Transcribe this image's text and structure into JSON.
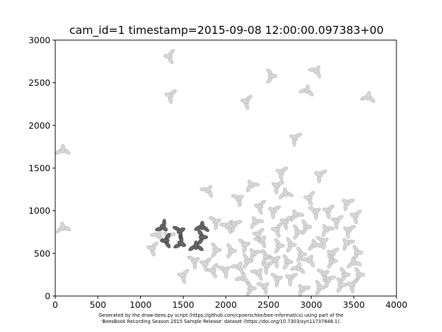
{
  "figure": {
    "title": "cam_id=1 timestamp=2015-09-08 12:00:00.097383+00",
    "footer_line1": "Generated by the draw-bees.py script (https://github.com/cpoerschke/bee-informatics) using part of the",
    "footer_line2": "'BeesBook Recording Season 2015 Sample Release' dataset (https://doi.org/10.7303/syn11737848.1)."
  },
  "chart_data": {
    "type": "scatter",
    "title": "cam_id=1 timestamp=2015-09-08 12:00:00.097383+00",
    "xlabel": "",
    "ylabel": "",
    "xlim": [
      0,
      4000
    ],
    "ylim": [
      0,
      3000
    ],
    "xticks": [
      "0",
      "500",
      "1000",
      "1500",
      "2000",
      "2500",
      "3000",
      "3500",
      "4000"
    ],
    "yticks": [
      "0",
      "500",
      "1000",
      "1500",
      "2000",
      "2500",
      "3000"
    ],
    "grid": false,
    "legend": "none",
    "colors": {
      "highlighted": "#555555",
      "background": "#cfcfcf"
    },
    "marker": "bee (body ellipse + two wing ellipses)",
    "series": [
      {
        "values": [
          {
            "x": 1650,
            "y": 580,
            "angle": 90
          },
          {
            "x": 1460,
            "y": 760,
            "angle": 30
          },
          {
            "x": 1260,
            "y": 810,
            "angle": -40
          },
          {
            "x": 1720,
            "y": 810,
            "angle": 85
          },
          {
            "x": 1720,
            "y": 690,
            "angle": 0
          },
          {
            "x": 1470,
            "y": 620,
            "angle": -30
          },
          {
            "x": 1300,
            "y": 650,
            "angle": 180
          }
        ]
      },
      {
        "values": [
          {
            "x": 2530,
            "y": 2580,
            "angle": 0
          },
          {
            "x": 2810,
            "y": 1850,
            "angle": 150
          },
          {
            "x": 2650,
            "y": 1450,
            "angle": 155
          },
          {
            "x": 1340,
            "y": 2810,
            "angle": 175
          },
          {
            "x": 1350,
            "y": 2350,
            "angle": 160
          },
          {
            "x": 2240,
            "y": 2280,
            "angle": 165
          },
          {
            "x": 2950,
            "y": 2410,
            "angle": 75
          },
          {
            "x": 3060,
            "y": 2640,
            "angle": 55
          },
          {
            "x": 3670,
            "y": 2330,
            "angle": 80
          },
          {
            "x": 90,
            "y": 1710,
            "angle": 90
          },
          {
            "x": 90,
            "y": 800,
            "angle": 100
          },
          {
            "x": 1790,
            "y": 1240,
            "angle": 55
          },
          {
            "x": 2300,
            "y": 1300,
            "angle": 120
          },
          {
            "x": 2600,
            "y": 1290,
            "angle": 150
          },
          {
            "x": 2150,
            "y": 1140,
            "angle": 35
          },
          {
            "x": 2400,
            "y": 1050,
            "angle": 165
          },
          {
            "x": 2700,
            "y": 1200,
            "angle": 100
          },
          {
            "x": 2980,
            "y": 1150,
            "angle": 170
          },
          {
            "x": 3100,
            "y": 1420,
            "angle": 150
          },
          {
            "x": 3200,
            "y": 1000,
            "angle": 160
          },
          {
            "x": 3420,
            "y": 1090,
            "angle": 140
          },
          {
            "x": 3520,
            "y": 940,
            "angle": 160
          },
          {
            "x": 3050,
            "y": 990,
            "angle": 30
          },
          {
            "x": 2820,
            "y": 950,
            "angle": 115
          },
          {
            "x": 2560,
            "y": 1000,
            "angle": 150
          },
          {
            "x": 2350,
            "y": 870,
            "angle": 120
          },
          {
            "x": 2100,
            "y": 840,
            "angle": 140
          },
          {
            "x": 1880,
            "y": 870,
            "angle": 25
          },
          {
            "x": 2020,
            "y": 820,
            "angle": 50
          },
          {
            "x": 2600,
            "y": 780,
            "angle": 170
          },
          {
            "x": 2700,
            "y": 870,
            "angle": 160
          },
          {
            "x": 2840,
            "y": 750,
            "angle": 0
          },
          {
            "x": 2940,
            "y": 810,
            "angle": 0
          },
          {
            "x": 3180,
            "y": 780,
            "angle": 125
          },
          {
            "x": 3300,
            "y": 880,
            "angle": 155
          },
          {
            "x": 3440,
            "y": 770,
            "angle": 150
          },
          {
            "x": 2380,
            "y": 720,
            "angle": 165
          },
          {
            "x": 2420,
            "y": 650,
            "angle": 50
          },
          {
            "x": 2220,
            "y": 600,
            "angle": 20
          },
          {
            "x": 2060,
            "y": 530,
            "angle": 0
          },
          {
            "x": 1880,
            "y": 540,
            "angle": 0
          },
          {
            "x": 1320,
            "y": 700,
            "angle": 135
          },
          {
            "x": 1140,
            "y": 560,
            "angle": 165
          },
          {
            "x": 1210,
            "y": 710,
            "angle": 60
          },
          {
            "x": 2470,
            "y": 460,
            "angle": 0
          },
          {
            "x": 2330,
            "y": 500,
            "angle": 130
          },
          {
            "x": 2250,
            "y": 410,
            "angle": 0
          },
          {
            "x": 2150,
            "y": 340,
            "angle": 60
          },
          {
            "x": 1990,
            "y": 300,
            "angle": 35
          },
          {
            "x": 1850,
            "y": 300,
            "angle": 175
          },
          {
            "x": 1760,
            "y": 380,
            "angle": 160
          },
          {
            "x": 1630,
            "y": 410,
            "angle": 30
          },
          {
            "x": 1500,
            "y": 240,
            "angle": 165
          },
          {
            "x": 2380,
            "y": 270,
            "angle": 50
          },
          {
            "x": 2480,
            "y": 350,
            "angle": 150
          },
          {
            "x": 2580,
            "y": 420,
            "angle": 40
          },
          {
            "x": 2620,
            "y": 590,
            "angle": 0
          },
          {
            "x": 2760,
            "y": 600,
            "angle": 0
          },
          {
            "x": 2880,
            "y": 490,
            "angle": 0
          },
          {
            "x": 2980,
            "y": 420,
            "angle": 60
          },
          {
            "x": 3040,
            "y": 600,
            "angle": 105
          },
          {
            "x": 3140,
            "y": 640,
            "angle": 30
          },
          {
            "x": 3250,
            "y": 500,
            "angle": 155
          },
          {
            "x": 3420,
            "y": 620,
            "angle": 130
          },
          {
            "x": 3540,
            "y": 510,
            "angle": 0
          },
          {
            "x": 3500,
            "y": 390,
            "angle": 100
          },
          {
            "x": 3560,
            "y": 250,
            "angle": 0
          },
          {
            "x": 3390,
            "y": 250,
            "angle": 0
          },
          {
            "x": 3350,
            "y": 130,
            "angle": 0
          },
          {
            "x": 3480,
            "y": 130,
            "angle": 160
          },
          {
            "x": 3200,
            "y": 190,
            "angle": 140
          },
          {
            "x": 3100,
            "y": 100,
            "angle": 0
          },
          {
            "x": 2900,
            "y": 80,
            "angle": 130
          },
          {
            "x": 2760,
            "y": 210,
            "angle": 150
          },
          {
            "x": 2850,
            "y": 330,
            "angle": 75
          },
          {
            "x": 2600,
            "y": 200,
            "angle": 20
          },
          {
            "x": 2450,
            "y": 110,
            "angle": 40
          },
          {
            "x": 2290,
            "y": 90,
            "angle": 0
          },
          {
            "x": 2200,
            "y": 210,
            "angle": 75
          },
          {
            "x": 3240,
            "y": 410,
            "angle": 0
          },
          {
            "x": 3150,
            "y": 260,
            "angle": 30
          },
          {
            "x": 2720,
            "y": 400,
            "angle": 0
          }
        ]
      }
    ]
  }
}
